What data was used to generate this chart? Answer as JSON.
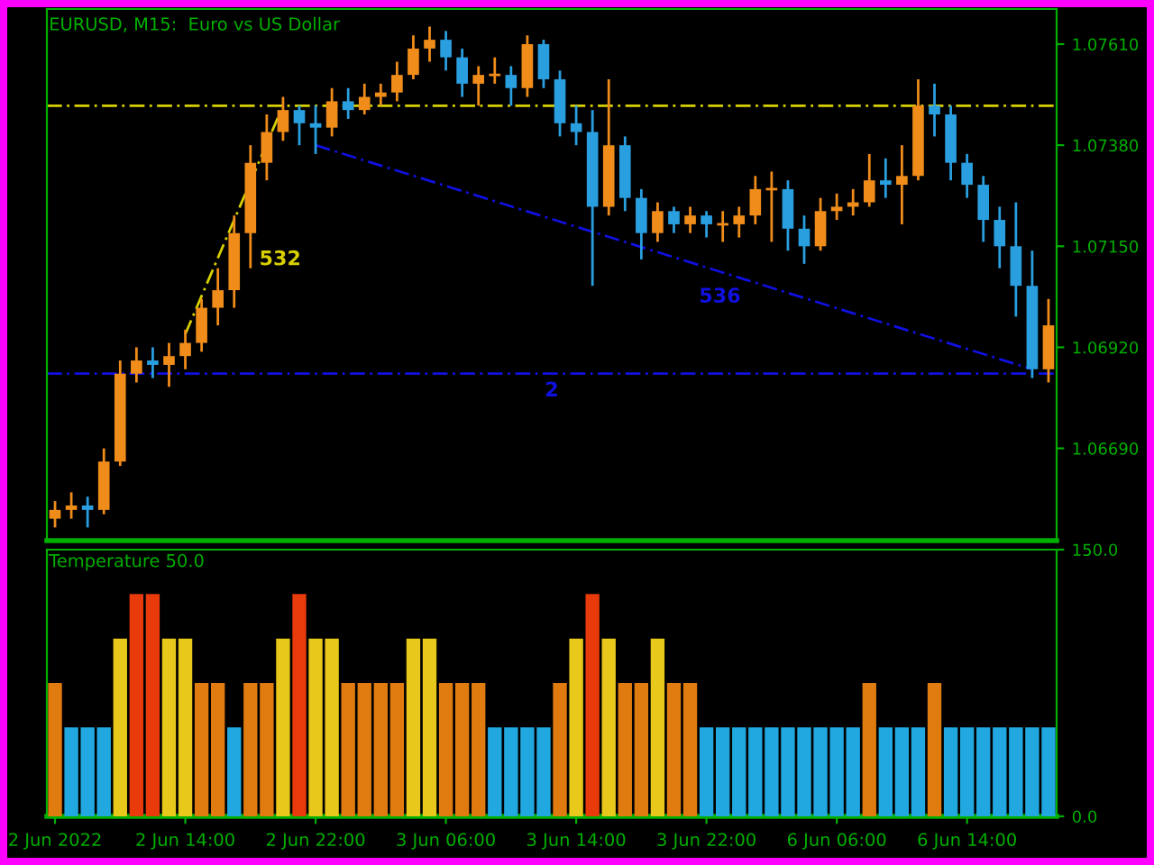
{
  "chart_data": [
    {
      "type": "candlestick",
      "title": "EURUSD, M15:  Euro vs US Dollar",
      "categories": [
        null,
        null,
        null,
        null,
        null,
        null,
        null,
        null,
        null,
        null,
        null,
        null,
        null,
        null,
        null,
        null,
        null,
        null,
        null,
        null,
        null,
        null,
        null,
        null,
        null,
        null,
        null,
        null,
        null,
        null,
        null,
        null,
        null,
        null,
        null,
        null,
        null,
        null,
        null,
        null,
        null,
        null,
        null,
        null,
        null,
        null,
        null,
        null,
        null,
        null,
        null,
        null,
        null,
        null,
        null,
        null,
        null,
        null,
        null,
        null,
        null,
        null
      ],
      "ohlc": [
        [
          1.0653,
          1.0657,
          1.0651,
          1.0655
        ],
        [
          1.0655,
          1.0659,
          1.0653,
          1.0656
        ],
        [
          1.0656,
          1.0658,
          1.0651,
          1.0655
        ],
        [
          1.0655,
          1.0669,
          1.0654,
          1.0666
        ],
        [
          1.0666,
          1.0689,
          1.0665,
          1.0686
        ],
        [
          1.0686,
          1.0692,
          1.0684,
          1.0689
        ],
        [
          1.0689,
          1.0692,
          1.0685,
          1.0688
        ],
        [
          1.0688,
          1.0693,
          1.0683,
          1.069
        ],
        [
          1.069,
          1.0696,
          1.0687,
          1.0693
        ],
        [
          1.0693,
          1.0703,
          1.0691,
          1.0701
        ],
        [
          1.0701,
          1.071,
          1.0697,
          1.0705
        ],
        [
          1.0705,
          1.0722,
          1.0701,
          1.0718
        ],
        [
          1.0718,
          1.0738,
          1.071,
          1.0734
        ],
        [
          1.0734,
          1.0745,
          1.073,
          1.0741
        ],
        [
          1.0741,
          1.0749,
          1.0739,
          1.0746
        ],
        [
          1.0746,
          1.0747,
          1.0738,
          1.0743
        ],
        [
          1.0743,
          1.0747,
          1.0736,
          1.0742
        ],
        [
          1.0742,
          1.0751,
          1.074,
          1.0748
        ],
        [
          1.0748,
          1.0751,
          1.0744,
          1.0746
        ],
        [
          1.0746,
          1.0752,
          1.0745,
          1.0749
        ],
        [
          1.0749,
          1.0752,
          1.0747,
          1.075
        ],
        [
          1.075,
          1.0757,
          1.0748,
          1.0754
        ],
        [
          1.0754,
          1.0763,
          1.0753,
          1.076
        ],
        [
          1.076,
          1.0765,
          1.0757,
          1.0762
        ],
        [
          1.0762,
          1.0764,
          1.0755,
          1.0758
        ],
        [
          1.0758,
          1.076,
          1.0749,
          1.0752
        ],
        [
          1.0752,
          1.0756,
          1.0747,
          1.0754
        ],
        [
          1.0754,
          1.0758,
          1.0752,
          1.0754
        ],
        [
          1.0754,
          1.0756,
          1.0747,
          1.0751
        ],
        [
          1.0751,
          1.0763,
          1.0749,
          1.0761
        ],
        [
          1.0761,
          1.0762,
          1.0751,
          1.0753
        ],
        [
          1.0753,
          1.0755,
          1.074,
          1.0743
        ],
        [
          1.0743,
          1.0747,
          1.0738,
          1.0741
        ],
        [
          1.0741,
          1.0746,
          1.0706,
          1.0724
        ],
        [
          1.0724,
          1.0753,
          1.0722,
          1.0738
        ],
        [
          1.0738,
          1.074,
          1.0723,
          1.0726
        ],
        [
          1.0726,
          1.0728,
          1.0712,
          1.0718
        ],
        [
          1.0718,
          1.0725,
          1.0716,
          1.0723
        ],
        [
          1.0723,
          1.0724,
          1.0718,
          1.072
        ],
        [
          1.072,
          1.0724,
          1.0718,
          1.0722
        ],
        [
          1.0722,
          1.0723,
          1.0717,
          1.072
        ],
        [
          1.072,
          1.0723,
          1.0716,
          1.072
        ],
        [
          1.072,
          1.0724,
          1.0717,
          1.0722
        ],
        [
          1.0722,
          1.0731,
          1.072,
          1.0728
        ],
        [
          1.0728,
          1.0732,
          1.0716,
          1.0728
        ],
        [
          1.0728,
          1.073,
          1.0714,
          1.0719
        ],
        [
          1.0719,
          1.0722,
          1.0711,
          1.0715
        ],
        [
          1.0715,
          1.0726,
          1.0714,
          1.0723
        ],
        [
          1.0723,
          1.0727,
          1.0721,
          1.0724
        ],
        [
          1.0724,
          1.0728,
          1.0722,
          1.0725
        ],
        [
          1.0725,
          1.0736,
          1.0724,
          1.073
        ],
        [
          1.073,
          1.0735,
          1.0726,
          1.0729
        ],
        [
          1.0729,
          1.0738,
          1.072,
          1.0731
        ],
        [
          1.0731,
          1.0753,
          1.073,
          1.0747
        ],
        [
          1.0747,
          1.0752,
          1.074,
          1.0745
        ],
        [
          1.0745,
          1.0747,
          1.073,
          1.0734
        ],
        [
          1.0734,
          1.0736,
          1.0726,
          1.0729
        ],
        [
          1.0729,
          1.0731,
          1.0716,
          1.0721
        ],
        [
          1.0721,
          1.0724,
          1.071,
          1.0715
        ],
        [
          1.0715,
          1.0725,
          1.0699,
          1.0706
        ],
        [
          1.0706,
          1.0714,
          1.0685,
          1.0687
        ],
        [
          1.0687,
          1.0703,
          1.0684,
          1.0697
        ]
      ],
      "colors": [
        "#f08c1a",
        "#f08c1a",
        "#2a9fe0",
        "#f08c1a",
        "#f08c1a",
        "#f08c1a",
        "#2a9fe0",
        "#f08c1a",
        "#f08c1a",
        "#f08c1a",
        "#f08c1a",
        "#f08c1a",
        "#f08c1a",
        "#f08c1a",
        "#f08c1a",
        "#2a9fe0",
        "#2a9fe0",
        "#f08c1a",
        "#2a9fe0",
        "#f08c1a",
        "#f08c1a",
        "#f08c1a",
        "#f08c1a",
        "#f08c1a",
        "#2a9fe0",
        "#2a9fe0",
        "#f08c1a",
        "#f08c1a",
        "#2a9fe0",
        "#f08c1a",
        "#2a9fe0",
        "#2a9fe0",
        "#2a9fe0",
        "#2a9fe0",
        "#f08c1a",
        "#2a9fe0",
        "#2a9fe0",
        "#f08c1a",
        "#2a9fe0",
        "#f08c1a",
        "#2a9fe0",
        "#f08c1a",
        "#f08c1a",
        "#f08c1a",
        "#f08c1a",
        "#2a9fe0",
        "#2a9fe0",
        "#f08c1a",
        "#f08c1a",
        "#f08c1a",
        "#f08c1a",
        "#2a9fe0",
        "#f08c1a",
        "#f08c1a",
        "#2a9fe0",
        "#2a9fe0",
        "#2a9fe0",
        "#2a9fe0",
        "#2a9fe0",
        "#2a9fe0",
        "#2a9fe0",
        "#f08c1a"
      ],
      "series": [
        {
          "type": "line",
          "name": "532",
          "color": "#d8d000",
          "line_style": "dashed",
          "values": [
            null,
            null,
            null,
            null,
            null,
            null,
            null,
            null,
            1.0695,
            null,
            null,
            null,
            null,
            null,
            1.0747,
            null,
            null,
            null,
            null,
            null,
            null,
            null,
            null,
            null,
            null,
            null,
            null,
            null,
            null,
            null,
            null,
            null,
            null,
            null,
            null,
            null,
            null,
            null,
            null,
            null,
            null,
            null,
            null,
            null,
            null,
            null,
            null,
            null,
            null,
            null,
            null,
            null,
            null,
            null,
            null,
            null,
            null,
            null,
            null,
            null,
            null,
            null
          ]
        },
        {
          "type": "line",
          "name": "536",
          "color": "#1010e0",
          "line_style": "dashed",
          "values": [
            null,
            null,
            null,
            null,
            null,
            null,
            null,
            null,
            null,
            null,
            null,
            null,
            null,
            null,
            null,
            null,
            1.0738,
            null,
            null,
            null,
            null,
            null,
            null,
            null,
            null,
            null,
            null,
            null,
            null,
            null,
            null,
            null,
            null,
            null,
            null,
            null,
            null,
            null,
            null,
            null,
            null,
            null,
            null,
            null,
            null,
            null,
            null,
            null,
            null,
            null,
            null,
            null,
            null,
            null,
            null,
            null,
            null,
            null,
            null,
            null,
            1.0687,
            null
          ]
        }
      ],
      "ref_lines": [
        {
          "axis": "y",
          "value": 1.0747,
          "color": "#d8d000",
          "line_style": "dashed"
        },
        {
          "axis": "y",
          "value": 1.0686,
          "color": "#1010e0",
          "line_style": "dashed"
        }
      ],
      "annotations": [
        {
          "text": "2",
          "y": 1.0686
        }
      ],
      "ylim": [
        1.0648,
        1.0769
      ],
      "yticks": [
        {
          "value": 1.0669,
          "label": "1.06690"
        },
        {
          "value": 1.0692,
          "label": "1.06920"
        },
        {
          "value": 1.0715,
          "label": "1.07150"
        },
        {
          "value": 1.0738,
          "label": "1.07380"
        },
        {
          "value": 1.0761,
          "label": "1.07610"
        }
      ],
      "grid": false,
      "legend": false
    },
    {
      "type": "bar",
      "title": "Temperature 50.0",
      "categories": [
        "2 Jun 2022",
        null,
        null,
        null,
        null,
        null,
        null,
        null,
        "2 Jun 14:00",
        null,
        null,
        null,
        null,
        null,
        null,
        null,
        "2 Jun 22:00",
        null,
        null,
        null,
        null,
        null,
        null,
        null,
        "3 Jun 06:00",
        null,
        null,
        null,
        null,
        null,
        null,
        null,
        "3 Jun 14:00",
        null,
        null,
        null,
        null,
        null,
        null,
        null,
        "3 Jun 22:00",
        null,
        null,
        null,
        null,
        null,
        null,
        null,
        "6 Jun 06:00",
        null,
        null,
        null,
        null,
        null,
        null,
        null,
        "6 Jun 14:00",
        null,
        null,
        null,
        null,
        null
      ],
      "values": [
        75,
        50,
        50,
        50,
        100,
        125,
        125,
        100,
        100,
        75,
        75,
        50,
        75,
        75,
        100,
        125,
        100,
        100,
        75,
        75,
        75,
        75,
        100,
        100,
        75,
        75,
        75,
        50,
        50,
        50,
        50,
        75,
        100,
        125,
        100,
        75,
        75,
        100,
        75,
        75,
        50,
        50,
        50,
        50,
        50,
        50,
        50,
        50,
        50,
        50,
        75,
        50,
        50,
        50,
        75,
        50,
        50,
        50,
        50,
        50,
        50,
        50
      ],
      "colors": [
        "#e07b10",
        "#22a8e0",
        "#22a8e0",
        "#22a8e0",
        "#e8c81a",
        "#e83a0a",
        "#e83a0a",
        "#e8c81a",
        "#e8c81a",
        "#e07b10",
        "#e07b10",
        "#22a8e0",
        "#e07b10",
        "#e07b10",
        "#e8c81a",
        "#e83a0a",
        "#e8c81a",
        "#e8c81a",
        "#e07b10",
        "#e07b10",
        "#e07b10",
        "#e07b10",
        "#e8c81a",
        "#e8c81a",
        "#e07b10",
        "#e07b10",
        "#e07b10",
        "#22a8e0",
        "#22a8e0",
        "#22a8e0",
        "#22a8e0",
        "#e07b10",
        "#e8c81a",
        "#e83a0a",
        "#e8c81a",
        "#e07b10",
        "#e07b10",
        "#e8c81a",
        "#e07b10",
        "#e07b10",
        "#22a8e0",
        "#22a8e0",
        "#22a8e0",
        "#22a8e0",
        "#22a8e0",
        "#22a8e0",
        "#22a8e0",
        "#22a8e0",
        "#22a8e0",
        "#22a8e0",
        "#e07b10",
        "#22a8e0",
        "#22a8e0",
        "#22a8e0",
        "#e07b10",
        "#22a8e0",
        "#22a8e0",
        "#22a8e0",
        "#22a8e0",
        "#22a8e0",
        "#22a8e0",
        "#22a8e0"
      ],
      "ylim": [
        0,
        150
      ],
      "yticks": [
        {
          "value": 0,
          "label": "0.0"
        },
        {
          "value": 150,
          "label": "150.0"
        }
      ],
      "grid": false,
      "legend": false
    }
  ]
}
